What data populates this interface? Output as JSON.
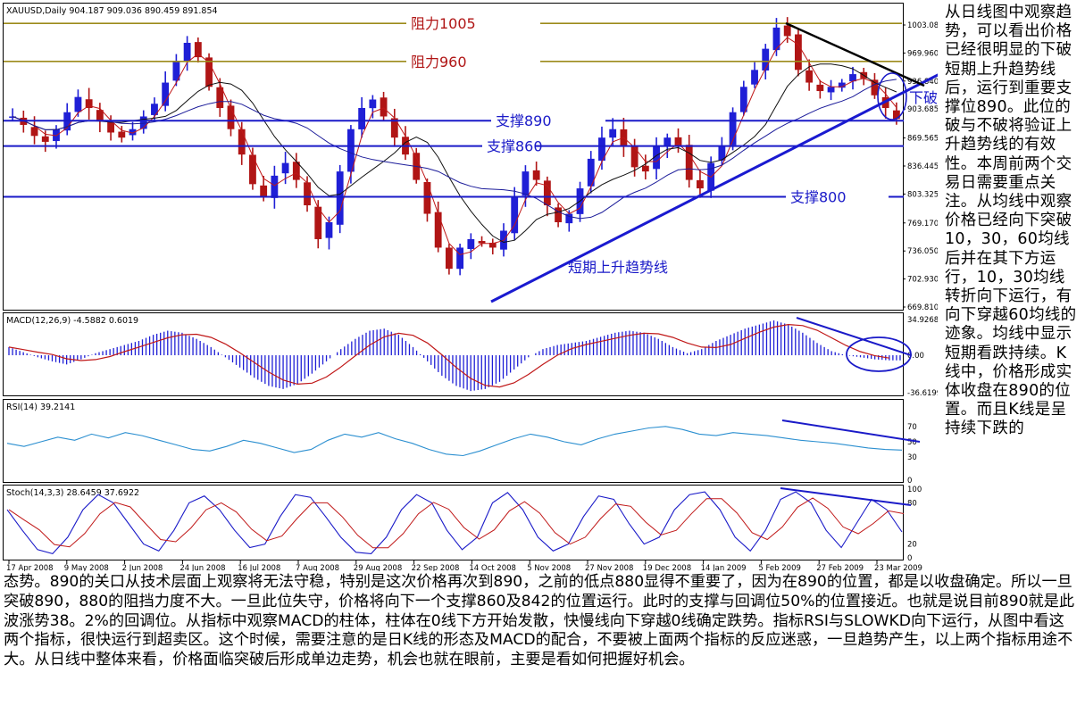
{
  "chart_data": [
    {
      "type": "line",
      "panel": "price",
      "title": "XAUUSD,Daily",
      "header_values": "904.187 909.036 890.459 891.854",
      "y_ticks": [
        "1003.081",
        "969.960",
        "936.840",
        "903.685",
        "869.565",
        "836.445",
        "803.325",
        "769.170",
        "736.050",
        "702.930",
        "669.810"
      ],
      "ylim": [
        669.81,
        1003.081
      ],
      "resistance_lines": [
        {
          "label": "阻力1005",
          "value": 1005
        },
        {
          "label": "阻力960",
          "value": 960
        }
      ],
      "support_lines": [
        {
          "label": "支撑890",
          "value": 890
        },
        {
          "label": "支撑860",
          "value": 860
        },
        {
          "label": "支撑800",
          "value": 800
        }
      ],
      "annotations": [
        "短期上升趋势线",
        "下破"
      ],
      "close_series_approx": [
        895,
        885,
        872,
        865,
        880,
        900,
        918,
        905,
        890,
        876,
        870,
        880,
        895,
        910,
        935,
        960,
        982,
        965,
        930,
        905,
        880,
        850,
        815,
        800,
        825,
        840,
        820,
        790,
        750,
        770,
        830,
        880,
        905,
        915,
        895,
        870,
        850,
        820,
        780,
        740,
        715,
        740,
        750,
        745,
        740,
        760,
        800,
        830,
        820,
        790,
        770,
        780,
        810,
        845,
        870,
        880,
        860,
        835,
        830,
        860,
        870,
        860,
        820,
        810,
        840,
        860,
        900,
        930,
        950,
        975,
        1000,
        990,
        950,
        935,
        925,
        930,
        935,
        945,
        940,
        920,
        905,
        892
      ]
    },
    {
      "type": "bar",
      "panel": "MACD",
      "header": "MACD(12,26,9) -4.5882 0.6019",
      "y_ticks": [
        "34.9268",
        "0.00",
        "-36.6199"
      ],
      "histogram_approx": [
        8,
        3,
        -2,
        -6,
        -9,
        -4,
        2,
        6,
        10,
        14,
        20,
        24,
        22,
        16,
        8,
        -2,
        -12,
        -22,
        -30,
        -33,
        -28,
        -18,
        -6,
        6,
        16,
        24,
        26,
        20,
        8,
        -6,
        -20,
        -30,
        -35,
        -33,
        -26,
        -14,
        -2,
        6,
        10,
        12,
        14,
        18,
        22,
        24,
        22,
        16,
        8,
        2,
        6,
        14,
        20,
        26,
        30,
        34,
        30,
        22,
        12,
        4,
        0,
        -2,
        -4,
        -5
      ]
    },
    {
      "type": "line",
      "panel": "RSI",
      "header": "RSI(14) 39.2141",
      "y_ticks": [
        "70",
        "50",
        "30",
        "0"
      ],
      "ylim": [
        0,
        100
      ],
      "values_approx": [
        48,
        44,
        50,
        56,
        52,
        60,
        55,
        62,
        58,
        52,
        46,
        40,
        38,
        44,
        52,
        48,
        42,
        36,
        40,
        52,
        60,
        56,
        62,
        54,
        48,
        40,
        34,
        32,
        38,
        46,
        54,
        60,
        56,
        50,
        46,
        54,
        60,
        64,
        68,
        70,
        66,
        60,
        58,
        62,
        60,
        58,
        55,
        52,
        50,
        48,
        45,
        42,
        40,
        39.2141
      ]
    },
    {
      "type": "line",
      "panel": "Stochastic",
      "header": "Stoch(14,3,3) 28.6459 37.6922",
      "y_ticks": [
        "100",
        "80",
        "20",
        "0"
      ],
      "ylim": [
        0,
        100
      ],
      "x_tick_labels": [
        "17 Apr 2008",
        "9 May 2008",
        "2 Jun 2008",
        "24 Jun 2008",
        "16 Jul 2008",
        "7 Aug 2008",
        "29 Aug 2008",
        "22 Sep 2008",
        "14 Oct 2008",
        "5 Nov 2008",
        "27 Nov 2008",
        "19 Dec 2008",
        "14 Jan 2009",
        "5 Feb 2009",
        "27 Feb 2009",
        "23 Mar 2009"
      ],
      "values_approx": [
        70,
        40,
        12,
        6,
        30,
        70,
        92,
        80,
        50,
        20,
        10,
        40,
        80,
        90,
        70,
        40,
        15,
        20,
        60,
        92,
        88,
        60,
        30,
        8,
        6,
        30,
        70,
        92,
        80,
        40,
        12,
        30,
        80,
        95,
        70,
        30,
        10,
        20,
        60,
        90,
        85,
        50,
        20,
        30,
        70,
        92,
        96,
        70,
        30,
        10,
        40,
        85,
        96,
        80,
        40,
        15,
        50,
        85,
        70,
        37.6922
      ]
    }
  ],
  "text": {
    "right_paragraph": "从日线图中观察趋势，可以看出价格已经很明显的下破短期上升趋势线后，运行到重要支撑位890。此位的破与不破将验证上升趋势线的有效性。本周前两个交易日需要重点关注。从均线中观察价格已经向下突破10，30，60均线后并在其下方运行，10，30均线转折向下运行，有向下穿越60均线的迹象。均线中显示短期看跌持续。K线中，价格形成实体收盘在890的位置。而且K线是呈持续下跌的",
    "bottom_paragraph": "态势。890的关口从技术层面上观察将无法守稳，特别是这次价格再次到890，之前的低点880显得不重要了，因为在890的位置，都是以收盘确定。所以一旦突破890，880的阻挡力度不大。一旦此位失守，价格将向下一个支撑860及842的位置运行。此时的支撑与回调位50%的位置接近。也就是说目前890就是此波涨势38。2%的回调位。从指标中观察MACD的柱体，柱体在0线下方开始发散，快慢线向下穿越0线确定跌势。指标RSI与SLOWKD向下运行，从图中看这两个指标，很快运行到超卖区。这个时候，需要注意的是日K线的形态及MACD的配合，不要被上面两个指标的反应迷惑，一旦趋势产生，以上两个指标用途不大。从日线中整体来看，价格面临突破后形成单边走势，机会也就在眼前，主要是看如何把握好机会。"
  },
  "colors": {
    "bull_candle": "#1f1fd6",
    "bear_candle": "#b01515",
    "support_line": "#1a1ac8",
    "resistance_line": "#9c8a1a",
    "trendline_up": "#1a1ad0",
    "trendline_down": "#000000",
    "ma_fast": "#c01818",
    "ma_slow": "#111111",
    "ma_mid": "#1c1c9a",
    "macd_hist": "#1f1fd6",
    "macd_signal": "#c01818",
    "rsi_line": "#2b8fd0",
    "stoch_main": "#1a1ac8",
    "stoch_signal": "#c01818"
  }
}
